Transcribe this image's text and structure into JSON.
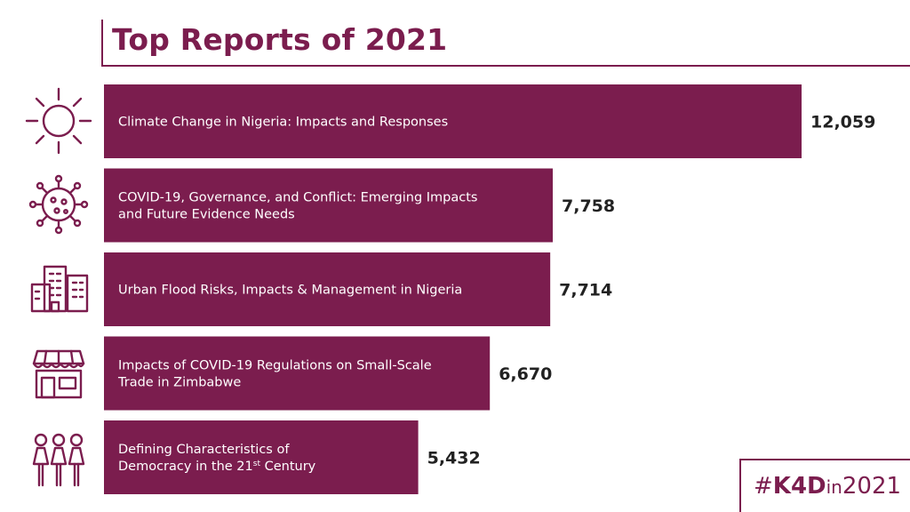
{
  "title": "Top Reports of 2021",
  "colors": {
    "accent": "#7b1d4e",
    "value_text": "#222222",
    "bar_text": "#ffffff"
  },
  "chart_data": {
    "type": "bar",
    "orientation": "horizontal",
    "title": "Top Reports of 2021",
    "categories": [
      "Climate Change in Nigeria: Impacts and Responses",
      "COVID-19, Governance, and Conflict: Emerging Impacts and Future Evidence Needs",
      "Urban Flood Risks, Impacts & Management in Nigeria",
      "Impacts of COVID-19 Regulations on Small-Scale Trade in Zimbabwe",
      "Defining Characteristics of Democracy in the 21st Century"
    ],
    "values": [
      12059,
      7758,
      7714,
      6670,
      5432
    ],
    "value_labels": [
      "12,059",
      "7,758",
      "7,714",
      "6,670",
      "5,432"
    ],
    "xlim": [
      0,
      12059
    ],
    "grid": false
  },
  "rows": [
    {
      "icon": "sun-icon",
      "label_lines": [
        {
          "text": "Climate Change in Nigeria: Impacts and Responses"
        }
      ]
    },
    {
      "icon": "virus-icon",
      "label_lines": [
        {
          "text": "COVID-19, Governance, and Conflict: Emerging Impacts"
        },
        {
          "text": "and Future Evidence Needs"
        }
      ]
    },
    {
      "icon": "city-buildings-icon",
      "label_lines": [
        {
          "text": "Urban Flood Risks, Impacts & Management in Nigeria"
        }
      ]
    },
    {
      "icon": "storefront-icon",
      "label_lines": [
        {
          "text": "Impacts of COVID-19 Regulations on Small-Scale"
        },
        {
          "text": "Trade in Zimbabwe"
        }
      ]
    },
    {
      "icon": "people-group-icon",
      "label_lines": [
        {
          "text": "Defining Characteristics of"
        },
        {
          "text": "Democracy in the 21",
          "sup": "st",
          "after": " Century"
        }
      ]
    }
  ],
  "hashtag": {
    "prefix": "#",
    "bold": "K4D",
    "small": "in",
    "year": "2021"
  }
}
